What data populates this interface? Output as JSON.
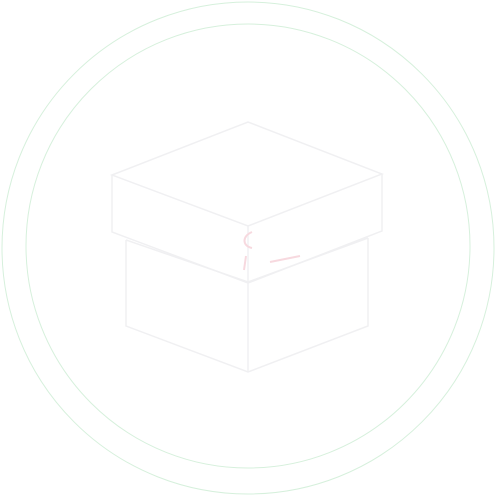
{
  "colors": {
    "background": "#ffffff",
    "ring": "#d6f0dc",
    "box_outline": "#f0f0f2",
    "accent_faint": "#f7d9df"
  },
  "icon": {
    "name": "box-in-circle-icon",
    "parts": [
      "outer-ring",
      "inner-ring",
      "box-lid",
      "box-body",
      "faint-ribbon-mark"
    ]
  }
}
